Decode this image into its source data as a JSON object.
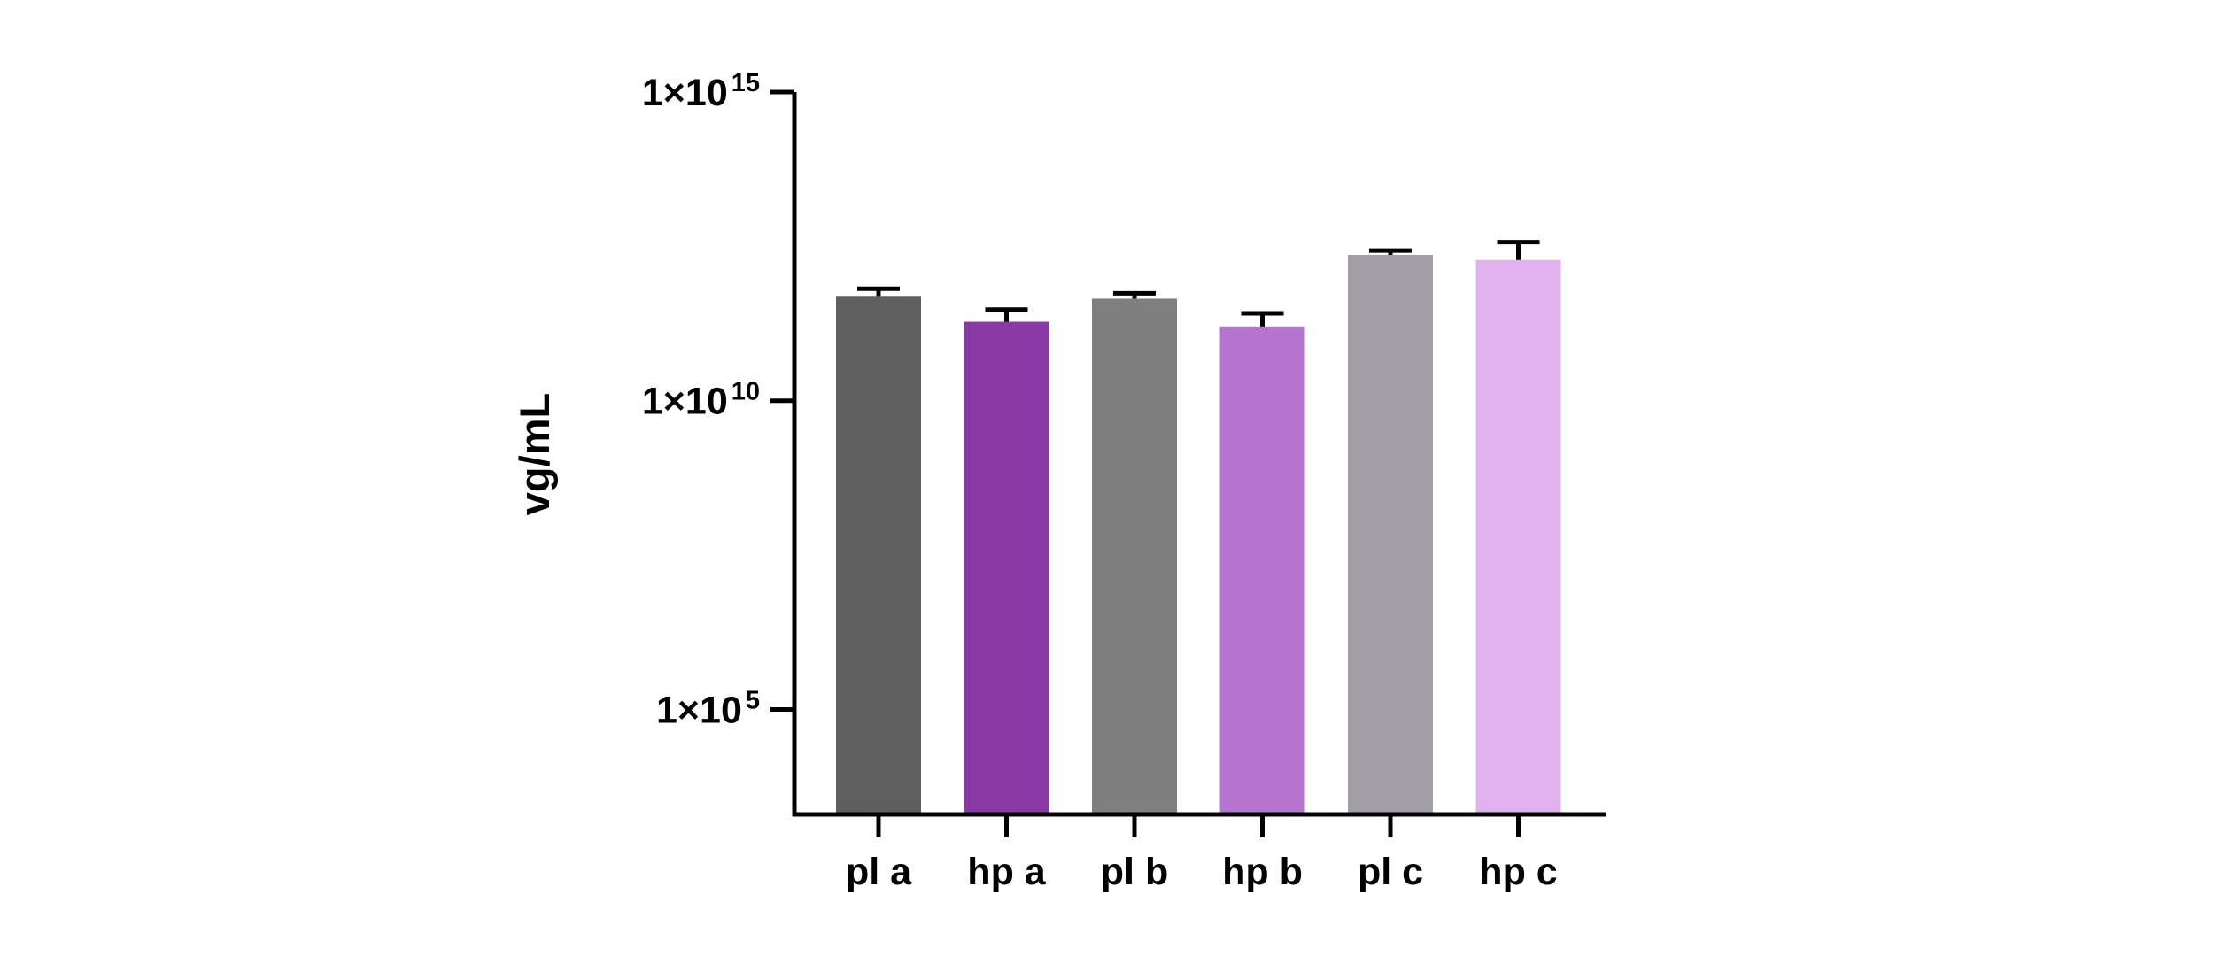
{
  "chart_data": {
    "type": "bar",
    "title": "",
    "xlabel": "",
    "ylabel": "vg/mL",
    "yscale": "log",
    "ylim": [
      2000,
      1000000000000000.0
    ],
    "grid": false,
    "legend": "none",
    "categories": [
      "pl a",
      "hp a",
      "pl b",
      "hp b",
      "pl c",
      "hp c"
    ],
    "values": [
      500000000000.0,
      190000000000.0,
      450000000000.0,
      160000000000.0,
      2300000000000.0,
      1900000000000.0
    ],
    "error_upper": [
      650000000000.0,
      300000000000.0,
      550000000000.0,
      260000000000.0,
      2700000000000.0,
      3700000000000.0
    ],
    "colors": [
      "#5f5f5f",
      "#8939a4",
      "#7f7f7f",
      "#b474d0",
      "#a19fa5",
      "#e0b1ec"
    ],
    "yticks": [
      {
        "value": 100000.0,
        "base": "1×10",
        "exp": "5"
      },
      {
        "value": 10000000000.0,
        "base": "1×10",
        "exp": "10"
      },
      {
        "value": 1000000000000000.0,
        "base": "1×10",
        "exp": "15"
      }
    ]
  }
}
